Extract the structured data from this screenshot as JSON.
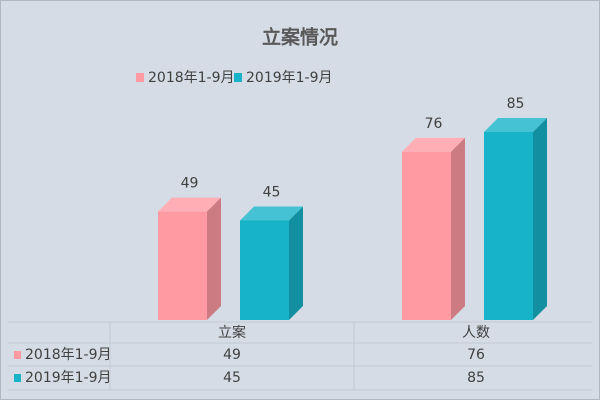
{
  "chart_data": {
    "type": "bar3d",
    "title": "立案情况",
    "categories": [
      "立案",
      "人数"
    ],
    "series": [
      {
        "name": "2018年1-9月",
        "color": "#ff9aa2",
        "values": [
          49,
          76
        ]
      },
      {
        "name": "2019年1-9月",
        "color": "#17b3c8",
        "values": [
          45,
          85
        ]
      }
    ],
    "data_table": true
  }
}
